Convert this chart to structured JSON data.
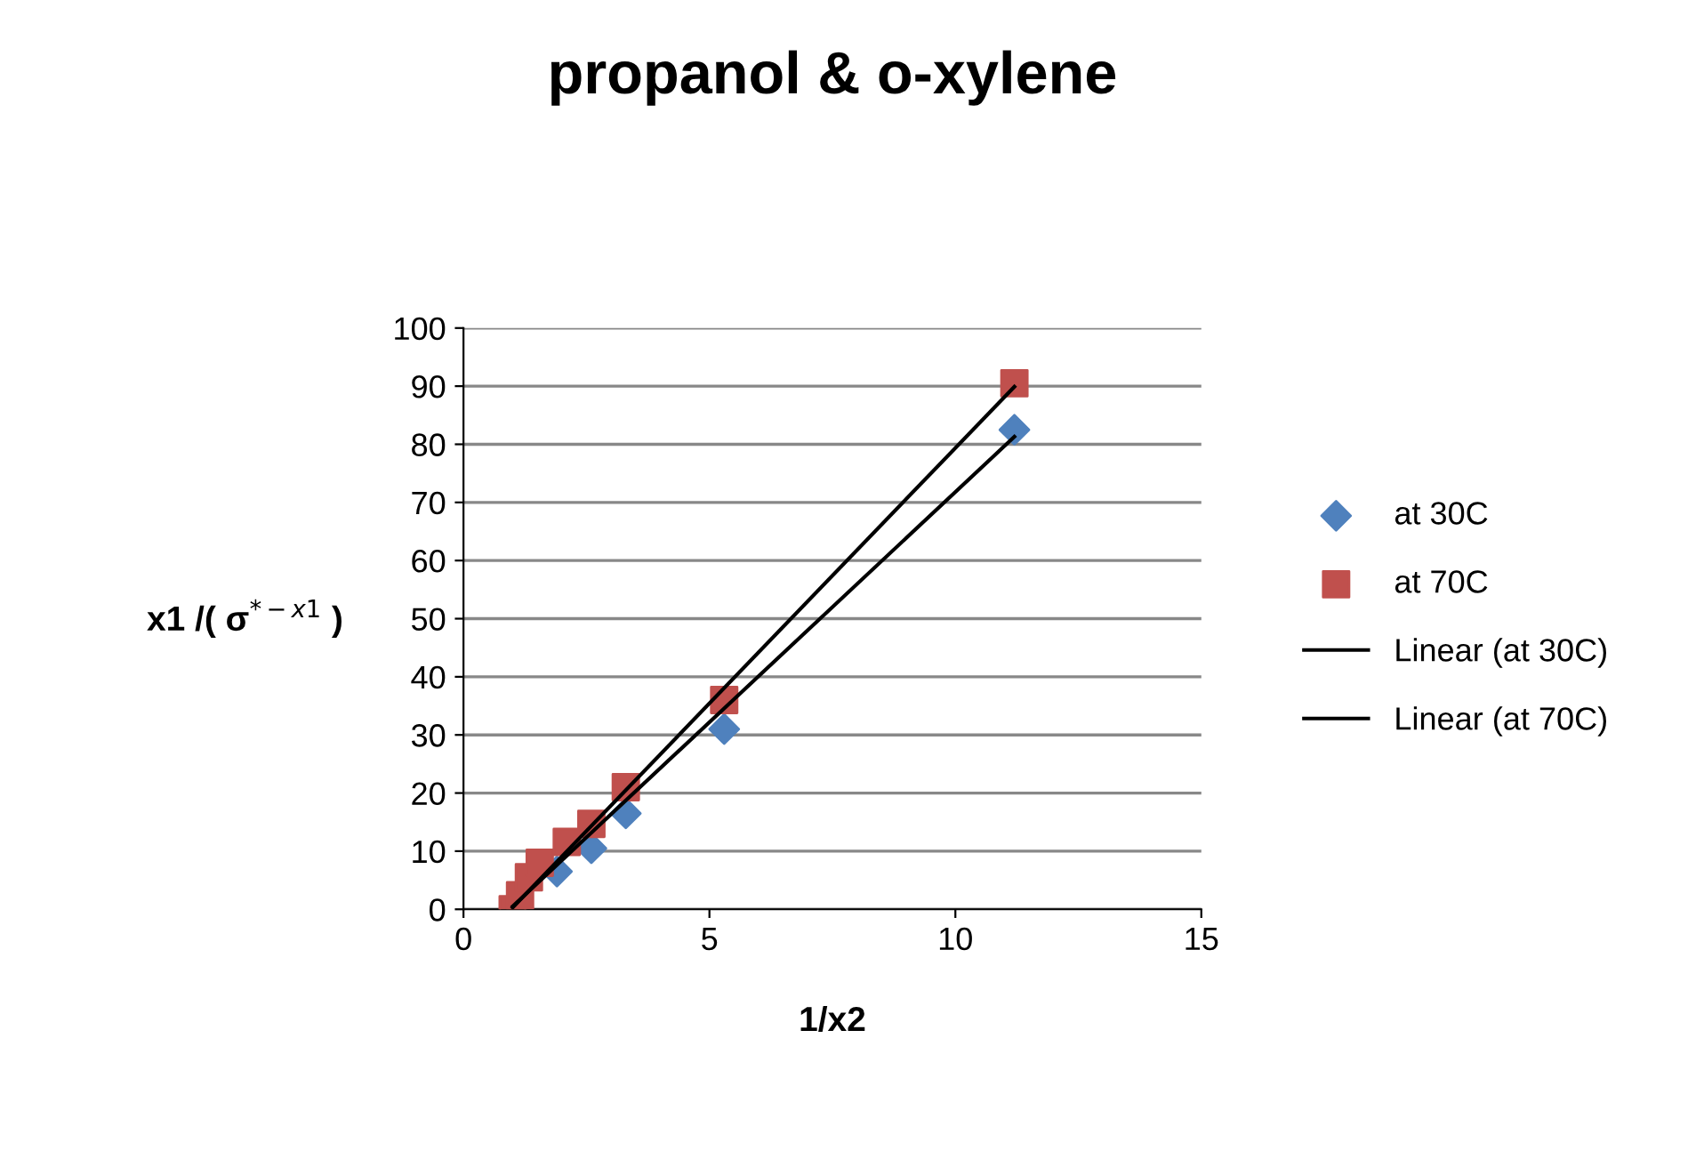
{
  "chart_data": {
    "type": "scatter",
    "title": "propanol & o-xylene",
    "xlabel": "1/x2",
    "ylabel": "x1 /( σ$^{*−x1}$ )",
    "xlim": [
      0,
      15
    ],
    "xticks": [
      0,
      5,
      10,
      15
    ],
    "ylim": [
      0,
      100
    ],
    "yticks": [
      0,
      10,
      20,
      30,
      40,
      50,
      60,
      70,
      80,
      90,
      100
    ],
    "grid": "y",
    "legend": "right",
    "series": [
      {
        "name": "at 30C",
        "marker": "diamond",
        "color": "#4f81bd",
        "x": [
          1.9,
          2.6,
          3.3,
          5.3,
          11.2
        ],
        "values": [
          6.5,
          10.5,
          16.5,
          31,
          82.5
        ]
      },
      {
        "name": "at 70C",
        "marker": "square",
        "color": "#c0504d",
        "x": [
          1.0,
          1.15,
          1.33,
          1.55,
          2.1,
          2.6,
          3.3,
          5.3,
          11.2
        ],
        "values": [
          0,
          2.4,
          5.5,
          8,
          11.6,
          14.7,
          21,
          36,
          90.5
        ]
      },
      {
        "name": "Linear (at 30C)",
        "type": "line",
        "marker": "none",
        "color": "#000000",
        "x": [
          1.0,
          11.2
        ],
        "values": [
          0.5,
          81.3
        ]
      },
      {
        "name": "Linear (at 70C)",
        "type": "line",
        "marker": "none",
        "color": "#000000",
        "x": [
          1.0,
          11.2
        ],
        "values": [
          0.3,
          89.9
        ]
      }
    ]
  }
}
